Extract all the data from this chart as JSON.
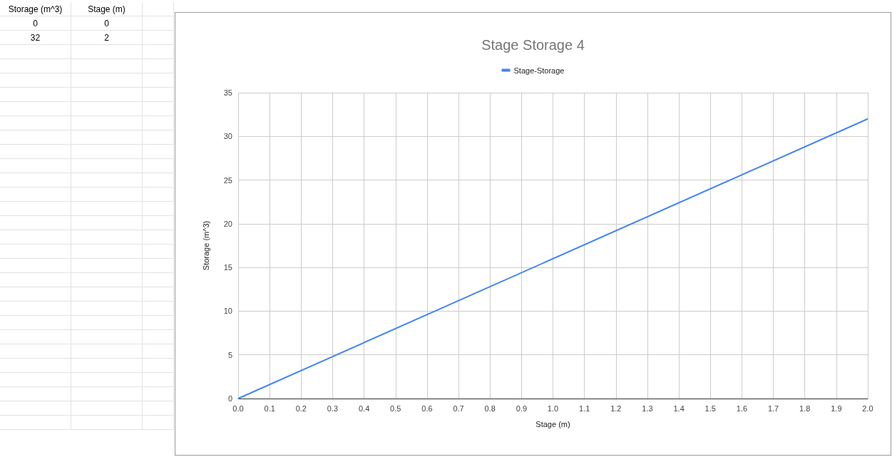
{
  "chart_data": {
    "type": "line",
    "title": "Stage Storage 4",
    "xlabel": "Stage (m)",
    "ylabel": "Storage (m^3)",
    "x": [
      0,
      2
    ],
    "series": [
      {
        "name": "Stage-Storage",
        "color": "#4285f4",
        "values": [
          0,
          32
        ]
      }
    ],
    "xlim": [
      0,
      2
    ],
    "xticks": [
      {
        "value": 0,
        "label": "0.0"
      },
      {
        "value": 0.1,
        "label": "0.1"
      },
      {
        "value": 0.2,
        "label": "0.2"
      },
      {
        "value": 0.3,
        "label": "0.3"
      },
      {
        "value": 0.4,
        "label": "0.4"
      },
      {
        "value": 0.5,
        "label": "0.5"
      },
      {
        "value": 0.6,
        "label": "0.6"
      },
      {
        "value": 0.7,
        "label": "0.7"
      },
      {
        "value": 0.8,
        "label": "0.8"
      },
      {
        "value": 0.9,
        "label": "0.9"
      },
      {
        "value": 1,
        "label": "1.0"
      },
      {
        "value": 1.1,
        "label": "1.1"
      },
      {
        "value": 1.2,
        "label": "1.2"
      },
      {
        "value": 1.3,
        "label": "1.3"
      },
      {
        "value": 1.4,
        "label": "1.4"
      },
      {
        "value": 1.5,
        "label": "1.5"
      },
      {
        "value": 1.6,
        "label": "1.6"
      },
      {
        "value": 1.7,
        "label": "1.7"
      },
      {
        "value": 1.8,
        "label": "1.8"
      },
      {
        "value": 1.9,
        "label": "1.9"
      },
      {
        "value": 2,
        "label": "2.0"
      }
    ],
    "ylim": [
      0,
      35
    ],
    "yticks": [
      0,
      5,
      10,
      15,
      20,
      25,
      30,
      35
    ],
    "grid": true,
    "legend": "top",
    "marker": "none",
    "line_style": "solid",
    "annotations": [
      "Storage (m^3)",
      "Stage (m)",
      "0",
      "0",
      "32",
      "2"
    ]
  }
}
